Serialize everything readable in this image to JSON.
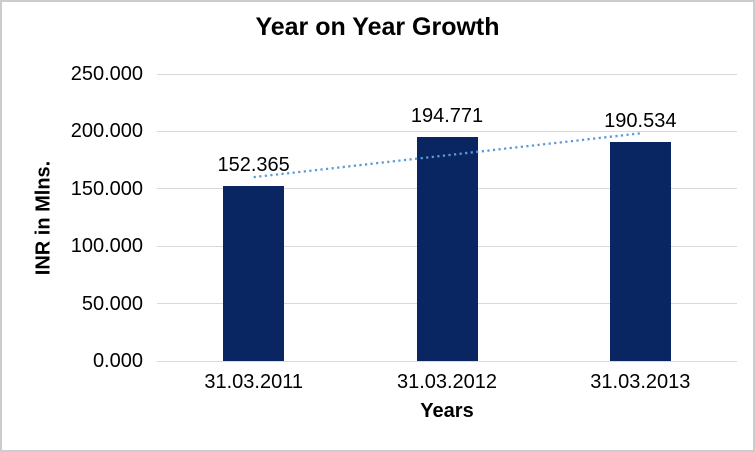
{
  "chart_data": {
    "type": "bar",
    "title": "Year on Year Growth",
    "xlabel": "Years",
    "ylabel": "INR in Mlns.",
    "categories": [
      "31.03.2011",
      "31.03.2012",
      "31.03.2013"
    ],
    "values": [
      152.365,
      194.771,
      190.534
    ],
    "value_labels": [
      "152.365",
      "194.771",
      "190.534"
    ],
    "ylim": [
      0,
      250
    ],
    "yticks": [
      250,
      200,
      150,
      100,
      50,
      0
    ],
    "ytick_labels": [
      "250.000",
      "200.000",
      "150.000",
      "100.000",
      "50.000",
      "0.000"
    ],
    "grid": true,
    "legend": false,
    "trendline": {
      "style": "dotted",
      "fit": "linear",
      "color": "#5b9bd5"
    },
    "colors": {
      "bar": "#0a2662",
      "trendline": "#5b9bd5",
      "gridline": "#d9d9d9",
      "text": "#000000",
      "frame_border": "#cbcccd"
    }
  }
}
